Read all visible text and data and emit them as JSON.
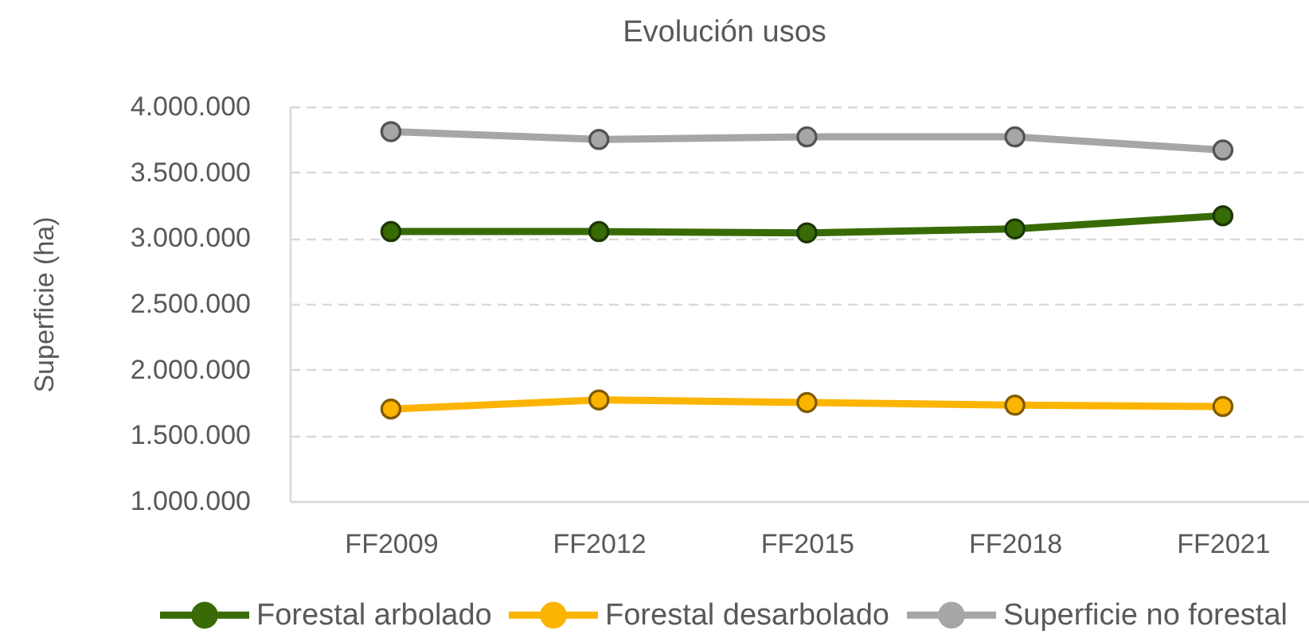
{
  "chart_data": {
    "type": "line",
    "title": "Evolución usos",
    "ylabel": "Superficie (ha)",
    "categories": [
      "FF2009",
      "FF2012",
      "FF2015",
      "FF2018",
      "FF2021"
    ],
    "series": [
      {
        "name": "Forestal arbolado",
        "color": "#386b06",
        "values": [
          3050000,
          3050000,
          3040000,
          3070000,
          3170000
        ]
      },
      {
        "name": "Forestal desarbolado",
        "color": "#fbb400",
        "values": [
          1700000,
          1770000,
          1750000,
          1730000,
          1720000
        ]
      },
      {
        "name": "Superficie no forestal",
        "color": "#a6a6a6",
        "values": [
          3810000,
          3750000,
          3770000,
          3770000,
          3670000
        ]
      }
    ],
    "ylim": [
      1000000,
      4000000
    ],
    "yticks": [
      {
        "value": 1000000,
        "label": "1.000.000"
      },
      {
        "value": 1500000,
        "label": "1.500.000"
      },
      {
        "value": 2000000,
        "label": "2.000.000"
      },
      {
        "value": 2500000,
        "label": "2.500.000"
      },
      {
        "value": 3000000,
        "label": "3.000.000"
      },
      {
        "value": 3500000,
        "label": "3.500.000"
      },
      {
        "value": 4000000,
        "label": "4.000.000"
      }
    ],
    "grid": "y",
    "legend": "bottom",
    "marker": "circle",
    "line_style": "solid"
  }
}
